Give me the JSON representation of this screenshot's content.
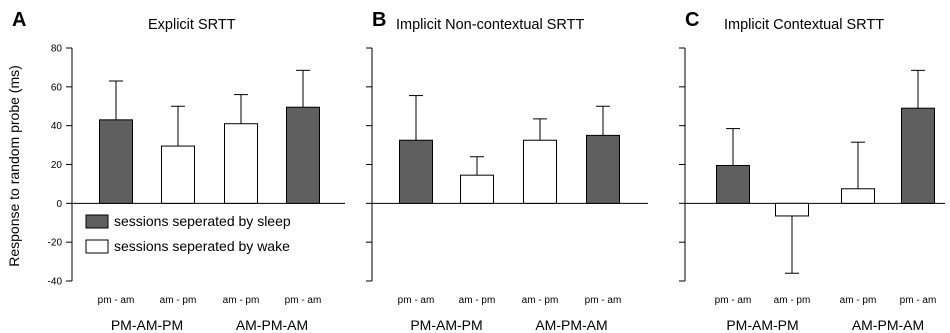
{
  "figure": {
    "ylabel": "Response to random probe (ms)",
    "colors": {
      "sleep": "#5f5f5f",
      "wake": "#ffffff",
      "stroke": "#000000"
    },
    "legend": [
      {
        "label": "sessions seperated by sleep",
        "color": "#5f5f5f"
      },
      {
        "label": "sessions seperated by wake",
        "color": "#ffffff"
      }
    ]
  },
  "chart_data": [
    {
      "type": "bar",
      "panel": "A",
      "title": "Explicit SRTT",
      "groups": [
        "PM-AM-PM",
        "AM-PM-AM"
      ],
      "categories": [
        "pm - am",
        "am - pm",
        "am - pm",
        "pm - am"
      ],
      "series": [
        {
          "name": "sessions seperated by sleep",
          "values": [
            43,
            null,
            null,
            49.5
          ]
        },
        {
          "name": "sessions seperated by wake",
          "values": [
            null,
            29.5,
            41,
            null
          ]
        }
      ],
      "values": [
        43,
        29.5,
        41,
        49.5
      ],
      "errors": [
        20,
        20.5,
        15,
        19
      ],
      "conditions": [
        "sleep",
        "wake",
        "wake",
        "sleep"
      ],
      "ylim": [
        -40,
        80
      ],
      "yticks": [
        -40,
        -20,
        0,
        20,
        40,
        60,
        80
      ],
      "show_yticks": true,
      "legend": "lower-left"
    },
    {
      "type": "bar",
      "panel": "B",
      "title": "Implicit Non-contextual SRTT",
      "groups": [
        "PM-AM-PM",
        "AM-PM-AM"
      ],
      "categories": [
        "pm - am",
        "am - pm",
        "am - pm",
        "pm - am"
      ],
      "series": [
        {
          "name": "sessions seperated by sleep",
          "values": [
            32.5,
            null,
            null,
            35
          ]
        },
        {
          "name": "sessions seperated by wake",
          "values": [
            null,
            14.5,
            32.5,
            null
          ]
        }
      ],
      "values": [
        32.5,
        14.5,
        32.5,
        35
      ],
      "errors": [
        23,
        9.5,
        11,
        15
      ],
      "conditions": [
        "sleep",
        "wake",
        "wake",
        "sleep"
      ],
      "ylim": [
        -40,
        80
      ],
      "yticks": [
        -40,
        -20,
        0,
        20,
        40,
        60,
        80
      ],
      "show_yticks": false
    },
    {
      "type": "bar",
      "panel": "C",
      "title": "Implicit Contextual SRTT",
      "groups": [
        "PM-AM-PM",
        "AM-PM-AM"
      ],
      "categories": [
        "pm - am",
        "am - pm",
        "am - pm",
        "pm - am"
      ],
      "series": [
        {
          "name": "sessions seperated by sleep",
          "values": [
            19.5,
            null,
            null,
            49
          ]
        },
        {
          "name": "sessions seperated by wake",
          "values": [
            null,
            -6.5,
            7.5,
            null
          ]
        }
      ],
      "values": [
        19.5,
        -6.5,
        7.5,
        49
      ],
      "errors": [
        19,
        29.5,
        24,
        19.5
      ],
      "conditions": [
        "sleep",
        "wake",
        "wake",
        "sleep"
      ],
      "ylim": [
        -40,
        80
      ],
      "yticks": [
        -40,
        -20,
        0,
        20,
        40,
        60,
        80
      ],
      "show_yticks": false
    }
  ]
}
